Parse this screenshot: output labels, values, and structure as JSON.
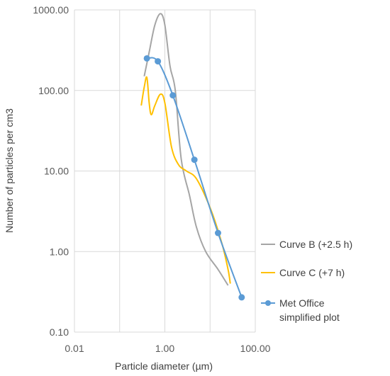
{
  "chart_data": {
    "type": "line",
    "xscale": "log",
    "yscale": "log",
    "xlim": [
      0.01,
      100
    ],
    "ylim": [
      0.1,
      1000
    ],
    "xticks": [
      "0.01",
      "1.00",
      "100.00"
    ],
    "yticks": [
      "0.10",
      "1.00",
      "10.00",
      "100.00",
      "1000.00"
    ],
    "xlabel": "Particle diameter (µm)",
    "ylabel": "Number of particles per cm3",
    "grid": "vertical and horizontal at each decade",
    "legend_position": "right",
    "series": [
      {
        "name": "Curve B (+2.5 h)",
        "color": "#a5a5a5",
        "markers": false,
        "x": [
          0.35,
          0.45,
          0.6,
          0.8,
          1.0,
          1.3,
          1.7,
          2.3,
          3.5,
          5.0,
          8.0,
          15.0,
          25.0
        ],
        "y": [
          150,
          300,
          650,
          900,
          650,
          200,
          100,
          14,
          5.0,
          2.0,
          1.0,
          0.6,
          0.38
        ]
      },
      {
        "name": "Curve C (+7 h)",
        "color": "#ffc000",
        "markers": false,
        "x": [
          0.3,
          0.35,
          0.4,
          0.45,
          0.5,
          0.6,
          0.8,
          1.0,
          1.4,
          2.0,
          3.0,
          5.0,
          10.0,
          18.0,
          25.0,
          28.0
        ],
        "y": [
          65,
          110,
          145,
          70,
          50,
          65,
          90,
          70,
          20,
          12,
          10,
          8,
          3.5,
          1.3,
          0.6,
          0.4
        ]
      },
      {
        "name": "Met Office simplified plot",
        "color": "#5b9bd5",
        "markers": true,
        "x": [
          0.4,
          0.7,
          1.5,
          4.5,
          15.0,
          50.0
        ],
        "y": [
          250,
          230,
          87,
          13.8,
          1.7,
          0.27
        ]
      }
    ]
  }
}
